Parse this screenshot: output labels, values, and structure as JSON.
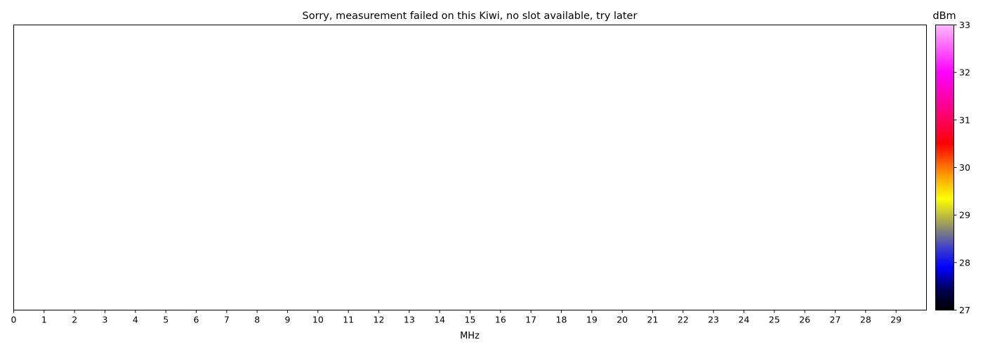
{
  "chart_data": {
    "type": "heatmap",
    "title": "Sorry, measurement failed on this Kiwi, no slot available, try later",
    "xlabel": "MHz",
    "ylabel": "",
    "xlim": [
      0,
      30
    ],
    "xticks": [
      0,
      1,
      2,
      3,
      4,
      5,
      6,
      7,
      8,
      9,
      10,
      11,
      12,
      13,
      14,
      15,
      16,
      17,
      18,
      19,
      20,
      21,
      22,
      23,
      24,
      25,
      26,
      27,
      28,
      29
    ],
    "values": [],
    "grid": false,
    "colorbar": {
      "label": "dBm",
      "range": [
        27,
        33
      ],
      "ticks": [
        27,
        28,
        29,
        30,
        31,
        32,
        33
      ],
      "colors": [
        {
          "value": 27.0,
          "color": "#000000"
        },
        {
          "value": 27.4,
          "color": "#00004a"
        },
        {
          "value": 27.9,
          "color": "#0000ff"
        },
        {
          "value": 28.3,
          "color": "#3c3cd0"
        },
        {
          "value": 28.8,
          "color": "#9a9a60"
        },
        {
          "value": 29.35,
          "color": "#ffff00"
        },
        {
          "value": 29.8,
          "color": "#ffa500"
        },
        {
          "value": 30.5,
          "color": "#ff0000"
        },
        {
          "value": 31.2,
          "color": "#ff0080"
        },
        {
          "value": 32.0,
          "color": "#ff00ff"
        },
        {
          "value": 33.0,
          "color": "#ffb8ff"
        }
      ]
    }
  }
}
